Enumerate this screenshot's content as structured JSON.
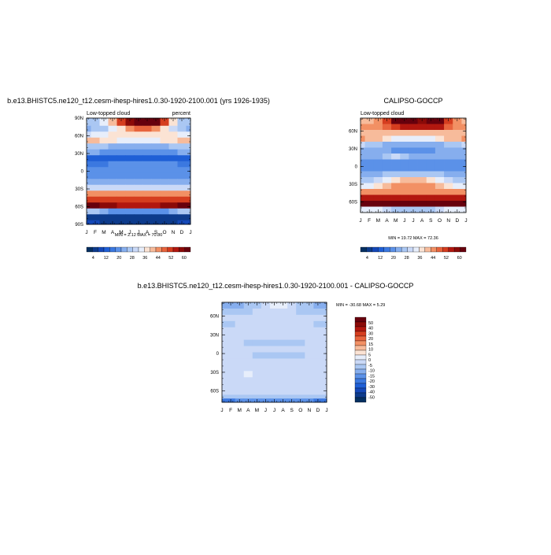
{
  "colors": {
    "palette": [
      "#053061",
      "#0d3b8c",
      "#1448b8",
      "#1f5fd6",
      "#3b78e0",
      "#5b91e8",
      "#86aeee",
      "#aac7f3",
      "#cad9f7",
      "#e7eefb",
      "#fbe3d4",
      "#f7bb9b",
      "#f29064",
      "#e8643d",
      "#d53d1f",
      "#b2170f",
      "#8b0a08",
      "#67000d"
    ]
  },
  "chart_data": [
    {
      "type": "heatmap",
      "title": "b.e13.BHISTC5.ne120_t12.cesm-ihesp-hires1.0.30-1920-2100.001 (yrs 1926-1935)",
      "left_label": "Low-topped cloud",
      "right_label": "percent",
      "minmax": "MIN =   2.12 MAX =  70.80",
      "x_ticks": [
        "J",
        "F",
        "M",
        "A",
        "M",
        "J",
        "J",
        "A",
        "S",
        "O",
        "N",
        "D",
        "J"
      ],
      "y_ticks": [
        "90N",
        "60N",
        "30N",
        "0",
        "30S",
        "60S",
        "90S"
      ],
      "y_range": [
        -90,
        90
      ],
      "colorbar": {
        "orientation": "horizontal",
        "labels": [
          "4",
          "12",
          "20",
          "28",
          "36",
          "44",
          "52",
          "60"
        ],
        "min": 0,
        "max": 64
      },
      "rows": [
        {
          "lat": 82,
          "values": [
            26,
            28,
            32,
            40,
            50,
            60,
            66,
            68,
            62,
            50,
            36,
            28,
            26
          ]
        },
        {
          "lat": 72,
          "values": [
            24,
            26,
            28,
            32,
            38,
            44,
            48,
            48,
            44,
            38,
            30,
            26,
            24
          ]
        },
        {
          "lat": 62,
          "values": [
            30,
            32,
            34,
            36,
            36,
            36,
            36,
            36,
            36,
            36,
            36,
            34,
            32
          ]
        },
        {
          "lat": 52,
          "values": [
            40,
            40,
            38,
            36,
            34,
            34,
            34,
            34,
            34,
            36,
            38,
            40,
            40
          ]
        },
        {
          "lat": 42,
          "values": [
            28,
            28,
            26,
            24,
            22,
            22,
            22,
            22,
            22,
            24,
            26,
            28,
            28
          ]
        },
        {
          "lat": 32,
          "values": [
            22,
            22,
            20,
            20,
            18,
            18,
            18,
            18,
            18,
            20,
            20,
            22,
            22
          ]
        },
        {
          "lat": 22,
          "values": [
            14,
            14,
            14,
            14,
            14,
            14,
            14,
            14,
            14,
            14,
            14,
            14,
            14
          ]
        },
        {
          "lat": 12,
          "values": [
            16,
            16,
            16,
            18,
            18,
            18,
            18,
            18,
            18,
            18,
            18,
            16,
            16
          ]
        },
        {
          "lat": 2,
          "values": [
            20,
            20,
            20,
            20,
            20,
            20,
            20,
            20,
            20,
            20,
            20,
            20,
            20
          ]
        },
        {
          "lat": -8,
          "values": [
            20,
            20,
            20,
            20,
            20,
            20,
            20,
            20,
            20,
            20,
            20,
            20,
            20
          ]
        },
        {
          "lat": -18,
          "values": [
            22,
            22,
            22,
            22,
            22,
            22,
            22,
            22,
            22,
            22,
            22,
            22,
            22
          ]
        },
        {
          "lat": -28,
          "values": [
            30,
            30,
            30,
            30,
            30,
            30,
            30,
            30,
            30,
            30,
            30,
            30,
            30
          ]
        },
        {
          "lat": -38,
          "values": [
            44,
            44,
            44,
            44,
            44,
            44,
            44,
            44,
            44,
            44,
            44,
            44,
            44
          ]
        },
        {
          "lat": -48,
          "values": [
            52,
            52,
            52,
            52,
            52,
            52,
            52,
            52,
            52,
            52,
            52,
            52,
            52
          ]
        },
        {
          "lat": -58,
          "values": [
            62,
            62,
            60,
            58,
            56,
            56,
            56,
            56,
            56,
            58,
            60,
            62,
            62
          ]
        },
        {
          "lat": -68,
          "values": [
            28,
            28,
            24,
            20,
            18,
            18,
            18,
            18,
            18,
            20,
            24,
            28,
            28
          ]
        },
        {
          "lat": -78,
          "values": [
            6,
            6,
            4,
            4,
            4,
            4,
            4,
            4,
            4,
            4,
            4,
            6,
            6
          ]
        },
        {
          "lat": -88,
          "values": [
            8,
            8,
            6,
            6,
            6,
            6,
            6,
            6,
            6,
            6,
            6,
            8,
            8
          ]
        }
      ]
    },
    {
      "type": "heatmap",
      "title": "CALIPSO-GOCCP",
      "left_label": "Low-topped cloud",
      "right_label": "",
      "minmax": "MIN =  19.72 MAX =  72.36",
      "x_ticks": [
        "J",
        "F",
        "M",
        "A",
        "M",
        "J",
        "J",
        "A",
        "S",
        "O",
        "N",
        "D",
        "J"
      ],
      "y_ticks": [
        "60N",
        "30N",
        "0",
        "30S",
        "60S"
      ],
      "y_range": [
        -78,
        82
      ],
      "colorbar": {
        "orientation": "horizontal",
        "labels": [
          "4",
          "12",
          "20",
          "28",
          "36",
          "44",
          "52",
          "60"
        ],
        "min": 0,
        "max": 64
      },
      "rows": [
        {
          "lat": 77,
          "values": [
            40,
            42,
            46,
            52,
            62,
            66,
            62,
            60,
            64,
            66,
            52,
            44,
            40
          ]
        },
        {
          "lat": 67,
          "values": [
            44,
            44,
            46,
            48,
            52,
            56,
            56,
            56,
            56,
            54,
            48,
            44,
            44
          ]
        },
        {
          "lat": 57,
          "values": [
            40,
            40,
            40,
            40,
            40,
            40,
            40,
            40,
            40,
            40,
            40,
            40,
            40
          ]
        },
        {
          "lat": 47,
          "values": [
            44,
            42,
            40,
            36,
            34,
            34,
            34,
            34,
            34,
            36,
            40,
            42,
            44
          ]
        },
        {
          "lat": 37,
          "values": [
            30,
            28,
            26,
            22,
            22,
            22,
            22,
            22,
            22,
            24,
            26,
            28,
            30
          ]
        },
        {
          "lat": 27,
          "values": [
            24,
            24,
            22,
            22,
            20,
            20,
            20,
            20,
            20,
            22,
            22,
            24,
            24
          ]
        },
        {
          "lat": 17,
          "values": [
            22,
            22,
            22,
            28,
            30,
            28,
            24,
            24,
            24,
            24,
            22,
            22,
            22
          ]
        },
        {
          "lat": 7,
          "values": [
            20,
            20,
            20,
            20,
            20,
            20,
            20,
            20,
            20,
            20,
            20,
            20,
            20
          ]
        },
        {
          "lat": -3,
          "values": [
            20,
            20,
            20,
            20,
            20,
            20,
            20,
            20,
            20,
            20,
            20,
            20,
            20
          ]
        },
        {
          "lat": -13,
          "values": [
            22,
            22,
            24,
            26,
            28,
            28,
            28,
            28,
            28,
            26,
            24,
            22,
            22
          ]
        },
        {
          "lat": -23,
          "values": [
            28,
            28,
            30,
            34,
            38,
            40,
            40,
            40,
            38,
            34,
            30,
            28,
            28
          ]
        },
        {
          "lat": -33,
          "values": [
            34,
            34,
            36,
            40,
            44,
            46,
            46,
            46,
            44,
            40,
            36,
            34,
            34
          ]
        },
        {
          "lat": -43,
          "values": [
            44,
            44,
            44,
            46,
            46,
            46,
            46,
            46,
            46,
            46,
            44,
            44,
            44
          ]
        },
        {
          "lat": -53,
          "values": [
            54,
            54,
            54,
            54,
            54,
            54,
            54,
            54,
            54,
            54,
            54,
            54,
            54
          ]
        },
        {
          "lat": -63,
          "values": [
            64,
            64,
            64,
            64,
            64,
            64,
            64,
            64,
            64,
            64,
            64,
            64,
            64
          ]
        },
        {
          "lat": -73,
          "values": [
            34,
            34,
            32,
            30,
            28,
            28,
            28,
            28,
            28,
            30,
            32,
            34,
            34
          ]
        }
      ]
    },
    {
      "type": "heatmap",
      "title": "b.e13.BHISTC5.ne120_t12.cesm-ihesp-hires1.0.30-1920-2100.001 - CALIPSO-GOCCP",
      "minmax": "MIN = -30.68 MAX =   5.29",
      "x_ticks": [
        "J",
        "F",
        "M",
        "A",
        "M",
        "J",
        "J",
        "A",
        "S",
        "O",
        "N",
        "D",
        "J"
      ],
      "y_ticks": [
        "60N",
        "30N",
        "0",
        "30S",
        "60S"
      ],
      "y_range": [
        -78,
        82
      ],
      "colorbar": {
        "orientation": "vertical",
        "labels": [
          "50",
          "40",
          "30",
          "20",
          "15",
          "10",
          "5",
          "0",
          "-5",
          "-10",
          "-15",
          "-20",
          "-30",
          "-40",
          "-50"
        ],
        "min": -55,
        "max": 55
      },
      "rows": [
        {
          "lat": 77,
          "values": [
            -16,
            -16,
            -14,
            -12,
            -8,
            -2,
            2,
            2,
            -2,
            -8,
            -12,
            -16,
            -16
          ]
        },
        {
          "lat": 67,
          "values": [
            -10,
            -10,
            -8,
            -8,
            -6,
            -6,
            -6,
            -6,
            -6,
            -8,
            -8,
            -10,
            -10
          ]
        },
        {
          "lat": 57,
          "values": [
            -6,
            -6,
            -4,
            -4,
            -4,
            -4,
            -4,
            -4,
            -4,
            -4,
            -4,
            -6,
            -6
          ]
        },
        {
          "lat": 47,
          "values": [
            -8,
            -8,
            -6,
            -6,
            -4,
            -4,
            -4,
            -4,
            -4,
            -6,
            -6,
            -8,
            -8
          ]
        },
        {
          "lat": 37,
          "values": [
            -6,
            -6,
            -6,
            -6,
            -6,
            -6,
            -6,
            -6,
            -6,
            -6,
            -6,
            -6,
            -6
          ]
        },
        {
          "lat": 27,
          "values": [
            -6,
            -6,
            -6,
            -6,
            -6,
            -6,
            -6,
            -6,
            -6,
            -6,
            -6,
            -6,
            -6
          ]
        },
        {
          "lat": 17,
          "values": [
            -6,
            -6,
            -6,
            -10,
            -12,
            -10,
            -8,
            -8,
            -8,
            -8,
            -6,
            -6,
            -6
          ]
        },
        {
          "lat": 7,
          "values": [
            -4,
            -4,
            -4,
            -4,
            -4,
            -4,
            -4,
            -4,
            -4,
            -4,
            -4,
            -4,
            -4
          ]
        },
        {
          "lat": -3,
          "values": [
            -4,
            -4,
            -4,
            -6,
            -8,
            -10,
            -12,
            -12,
            -10,
            -8,
            -6,
            -4,
            -4
          ]
        },
        {
          "lat": -13,
          "values": [
            -2,
            -2,
            -4,
            -4,
            -6,
            -6,
            -6,
            -6,
            -6,
            -4,
            -4,
            -2,
            -2
          ]
        },
        {
          "lat": -23,
          "values": [
            -4,
            -4,
            -4,
            -6,
            -6,
            -6,
            -6,
            -6,
            -6,
            -6,
            -4,
            -4,
            -4
          ]
        },
        {
          "lat": -33,
          "values": [
            -4,
            -4,
            -2,
            2,
            -2,
            -4,
            -4,
            -4,
            -4,
            -4,
            -2,
            -4,
            -4
          ]
        },
        {
          "lat": -43,
          "values": [
            -2,
            -2,
            -2,
            -2,
            -2,
            -2,
            -2,
            -2,
            -2,
            -2,
            -2,
            -2,
            -2
          ]
        },
        {
          "lat": -53,
          "values": [
            -2,
            -2,
            -2,
            -2,
            -2,
            -2,
            -2,
            -2,
            -2,
            -2,
            -2,
            -2,
            -2
          ]
        },
        {
          "lat": -63,
          "values": [
            -2,
            -2,
            -2,
            -2,
            -2,
            -2,
            -2,
            -2,
            -2,
            -2,
            -2,
            -2,
            -2
          ]
        },
        {
          "lat": -69,
          "values": [
            -12,
            -12,
            -10,
            -8,
            -8,
            -8,
            -8,
            -8,
            -8,
            -8,
            -10,
            -12,
            -12
          ]
        },
        {
          "lat": -75,
          "values": [
            -26,
            -26,
            -24,
            -22,
            -22,
            -22,
            -22,
            -22,
            -22,
            -22,
            -24,
            -26,
            -26
          ]
        }
      ]
    }
  ]
}
